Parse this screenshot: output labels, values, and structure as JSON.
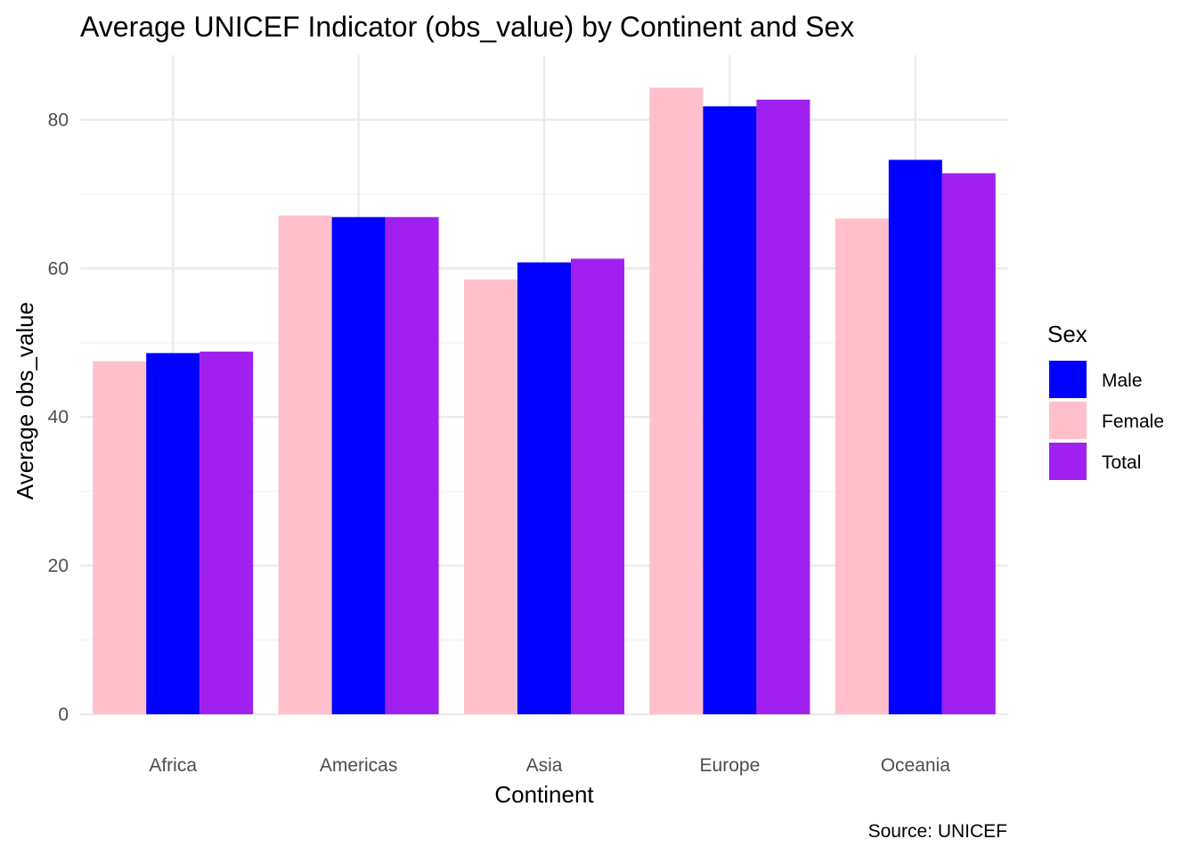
{
  "chart_data": {
    "type": "bar",
    "title": "Average UNICEF Indicator (obs_value) by Continent and Sex",
    "xlabel": "Continent",
    "ylabel": "Average obs_value",
    "caption": "Source: UNICEF",
    "categories": [
      "Africa",
      "Americas",
      "Asia",
      "Europe",
      "Oceania"
    ],
    "series": [
      {
        "name": "Female",
        "color": "#FFC0CB",
        "values": [
          47.5,
          67.1,
          58.5,
          84.3,
          66.7
        ]
      },
      {
        "name": "Male",
        "color": "#0000FF",
        "values": [
          48.6,
          66.9,
          60.8,
          81.8,
          74.6
        ]
      },
      {
        "name": "Total",
        "color": "#A020F0",
        "values": [
          48.8,
          66.9,
          61.3,
          82.7,
          72.8
        ]
      }
    ],
    "ylim": [
      0,
      88
    ],
    "yticks": [
      0,
      20,
      40,
      60,
      80
    ],
    "grid": true,
    "legend": {
      "title": "Sex",
      "position": "right",
      "entries": [
        "Male",
        "Female",
        "Total"
      ]
    }
  }
}
